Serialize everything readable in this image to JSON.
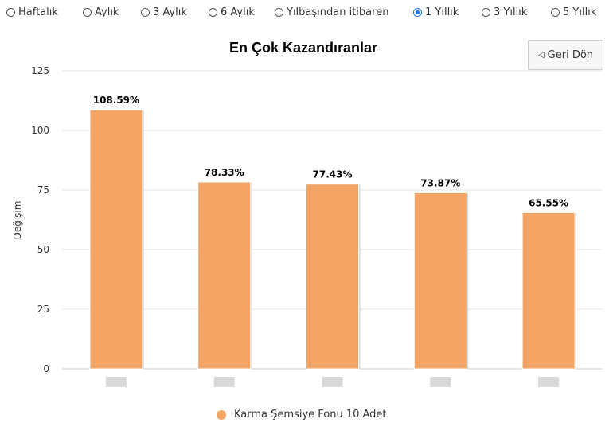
{
  "periods": [
    {
      "label": "Haftalık",
      "checked": false
    },
    {
      "label": "Aylık",
      "checked": false
    },
    {
      "label": "3 Aylık",
      "checked": false
    },
    {
      "label": "6 Aylık",
      "checked": false
    },
    {
      "label": "Yılbaşından itibaren",
      "checked": false
    },
    {
      "label": "1 Yıllık",
      "checked": true
    },
    {
      "label": "3 Yıllık",
      "checked": false
    },
    {
      "label": "5 Yıllık",
      "checked": false
    }
  ],
  "back_button": {
    "icon": "triangle-left-icon",
    "label": "Geri Dön"
  },
  "colors": {
    "bar": "#f4a565",
    "grid": "#e6e6e6",
    "radio_checked": "#1a73e8"
  },
  "chart_data": {
    "type": "bar",
    "title": "En Çok Kazandıranlar",
    "ylabel": "Değişim",
    "xlabel": "",
    "ylim": [
      0,
      125
    ],
    "yticks": [
      0,
      25,
      50,
      75,
      100,
      125
    ],
    "grid": true,
    "legend_position": "bottom",
    "series": [
      {
        "name": "Karma Şemsiye Fonu 10 Adet",
        "values": [
          108.59,
          78.33,
          77.43,
          73.87,
          65.55
        ]
      }
    ],
    "data_labels": [
      "108.59%",
      "78.33%",
      "77.43%",
      "73.87%",
      "65.55%"
    ]
  }
}
